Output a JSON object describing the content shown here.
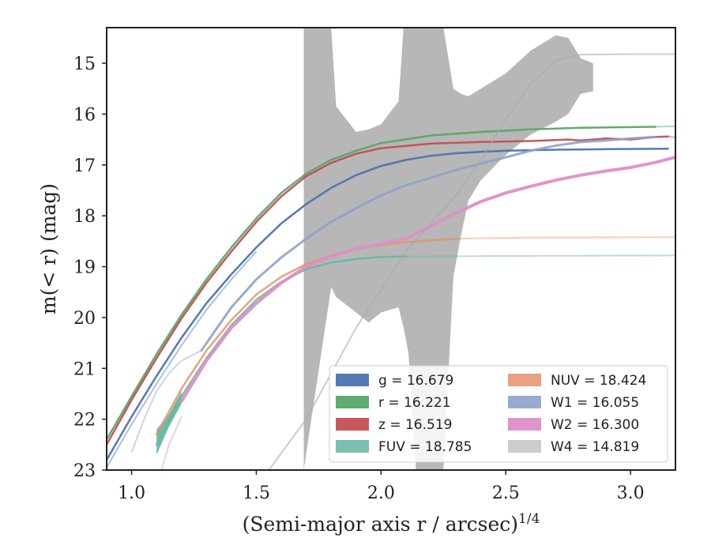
{
  "chart_data": {
    "type": "line",
    "xlabel": "(Semi-major axis r / arcsec)",
    "xlabel_superscript": "1/4",
    "ylabel": "m(< r) (mag)",
    "xlim": [
      0.9,
      3.18
    ],
    "ylim": [
      23.0,
      14.3
    ],
    "xticks": [
      "1.0",
      "1.5",
      "2.0",
      "2.5",
      "3.0"
    ],
    "xtick_values": [
      1.0,
      1.5,
      2.0,
      2.5,
      3.0
    ],
    "yticks": [
      "15",
      "16",
      "17",
      "18",
      "19",
      "20",
      "21",
      "22",
      "23"
    ],
    "ytick_values": [
      15,
      16,
      17,
      18,
      19,
      20,
      21,
      22,
      23
    ],
    "grid": false,
    "legend_position": "lower-right",
    "series": [
      {
        "name": "g = 16.679",
        "color": "#4c72b0",
        "width": 2.5,
        "opacity": 0.95,
        "points": [
          [
            0.9,
            22.8
          ],
          [
            1.0,
            21.95
          ],
          [
            1.1,
            21.15
          ],
          [
            1.2,
            20.4
          ],
          [
            1.3,
            19.72
          ],
          [
            1.4,
            19.15
          ],
          [
            1.5,
            18.62
          ],
          [
            1.6,
            18.15
          ],
          [
            1.7,
            17.77
          ],
          [
            1.8,
            17.45
          ],
          [
            1.9,
            17.2
          ],
          [
            2.0,
            17.02
          ],
          [
            2.1,
            16.9
          ],
          [
            2.2,
            16.82
          ],
          [
            2.3,
            16.77
          ],
          [
            2.4,
            16.74
          ],
          [
            2.5,
            16.72
          ],
          [
            2.7,
            16.7
          ],
          [
            2.9,
            16.69
          ],
          [
            3.15,
            16.68
          ]
        ],
        "faint_points": [
          [
            0.9,
            22.95
          ],
          [
            1.0,
            22.1
          ],
          [
            1.1,
            21.3
          ],
          [
            1.2,
            20.55
          ],
          [
            1.3,
            19.85
          ],
          [
            1.4,
            19.25
          ],
          [
            1.5,
            18.7
          ]
        ]
      },
      {
        "name": "r = 16.221",
        "color": "#55a868",
        "width": 2.5,
        "opacity": 0.95,
        "points": [
          [
            0.9,
            22.4
          ],
          [
            1.0,
            21.55
          ],
          [
            1.1,
            20.72
          ],
          [
            1.2,
            19.95
          ],
          [
            1.3,
            19.25
          ],
          [
            1.4,
            18.62
          ],
          [
            1.5,
            18.05
          ],
          [
            1.6,
            17.55
          ],
          [
            1.7,
            17.17
          ],
          [
            1.8,
            16.9
          ],
          [
            1.9,
            16.72
          ],
          [
            2.0,
            16.57
          ],
          [
            2.2,
            16.42
          ],
          [
            2.4,
            16.35
          ],
          [
            2.6,
            16.3
          ],
          [
            2.8,
            16.27
          ],
          [
            3.1,
            16.25
          ]
        ],
        "faint_points": [
          [
            3.1,
            16.25
          ],
          [
            3.18,
            16.24
          ]
        ]
      },
      {
        "name": "z = 16.519",
        "color": "#c44e52",
        "width": 2.5,
        "opacity": 0.95,
        "points": [
          [
            0.9,
            22.5
          ],
          [
            1.0,
            21.62
          ],
          [
            1.1,
            20.8
          ],
          [
            1.2,
            20.02
          ],
          [
            1.3,
            19.32
          ],
          [
            1.4,
            18.7
          ],
          [
            1.5,
            18.12
          ],
          [
            1.6,
            17.62
          ],
          [
            1.7,
            17.22
          ],
          [
            1.8,
            16.96
          ],
          [
            1.9,
            16.78
          ],
          [
            2.0,
            16.67
          ],
          [
            2.2,
            16.58
          ],
          [
            2.4,
            16.55
          ],
          [
            2.6,
            16.53
          ],
          [
            2.75,
            16.5
          ],
          [
            2.8,
            16.52
          ],
          [
            2.9,
            16.48
          ],
          [
            3.0,
            16.5
          ],
          [
            3.1,
            16.45
          ],
          [
            3.15,
            16.44
          ]
        ],
        "faint_points": [
          [
            3.15,
            16.44
          ],
          [
            3.18,
            16.46
          ]
        ]
      },
      {
        "name": "FUV = 18.785",
        "color": "#64b5a0",
        "width": 2.5,
        "opacity": 0.85,
        "points": [
          [
            1.1,
            22.5
          ],
          [
            1.2,
            21.55
          ],
          [
            1.3,
            20.8
          ],
          [
            1.4,
            20.15
          ],
          [
            1.5,
            19.65
          ],
          [
            1.6,
            19.3
          ],
          [
            1.7,
            19.05
          ],
          [
            1.8,
            18.92
          ],
          [
            1.9,
            18.85
          ],
          [
            2.0,
            18.81
          ],
          [
            2.1,
            18.8
          ]
        ],
        "faint_points": [
          [
            2.1,
            18.8
          ],
          [
            2.5,
            18.79
          ],
          [
            3.18,
            18.78
          ]
        ],
        "band": [
          [
            1.1,
            22.2,
            22.7
          ],
          [
            1.15,
            21.9,
            22.15
          ],
          [
            1.2,
            21.45,
            21.7
          ]
        ]
      },
      {
        "name": "NUV = 18.424",
        "color": "#e8916a",
        "width": 2.5,
        "opacity": 0.85,
        "points": [
          [
            1.1,
            22.3
          ],
          [
            1.2,
            21.4
          ],
          [
            1.3,
            20.65
          ],
          [
            1.4,
            20.05
          ],
          [
            1.5,
            19.55
          ],
          [
            1.6,
            19.2
          ],
          [
            1.7,
            18.95
          ],
          [
            1.8,
            18.78
          ],
          [
            1.9,
            18.65
          ],
          [
            2.0,
            18.57
          ],
          [
            2.1,
            18.52
          ],
          [
            2.2,
            18.48
          ],
          [
            2.3,
            18.45
          ]
        ],
        "faint_points": [
          [
            2.3,
            18.45
          ],
          [
            2.6,
            18.43
          ],
          [
            3.18,
            18.42
          ]
        ]
      },
      {
        "name": "W1 = 16.055",
        "color": "#8fa1c9",
        "width": 3,
        "opacity": 0.9,
        "points": [
          [
            1.28,
            20.65
          ],
          [
            1.35,
            20.15
          ],
          [
            1.4,
            19.8
          ],
          [
            1.5,
            19.25
          ],
          [
            1.6,
            18.82
          ],
          [
            1.7,
            18.45
          ],
          [
            1.8,
            18.12
          ],
          [
            1.9,
            17.85
          ],
          [
            2.0,
            17.6
          ],
          [
            2.1,
            17.4
          ],
          [
            2.2,
            17.25
          ],
          [
            2.3,
            17.1
          ],
          [
            2.4,
            16.97
          ],
          [
            2.5,
            16.85
          ],
          [
            2.6,
            16.72
          ],
          [
            2.7,
            16.62
          ],
          [
            2.8,
            16.55
          ],
          [
            2.9,
            16.52
          ],
          [
            3.0,
            16.48
          ],
          [
            3.1,
            16.45
          ]
        ],
        "faint_points": [
          [
            1.0,
            22.65
          ],
          [
            1.05,
            22.0
          ],
          [
            1.1,
            21.45
          ],
          [
            1.15,
            21.1
          ],
          [
            1.2,
            20.85
          ],
          [
            1.28,
            20.65
          ]
        ]
      },
      {
        "name": "W2 = 16.300",
        "color": "#dd8fc6",
        "width": 4,
        "opacity": 0.95,
        "points": [
          [
            1.2,
            21.65
          ],
          [
            1.3,
            20.85
          ],
          [
            1.4,
            20.2
          ],
          [
            1.5,
            19.72
          ],
          [
            1.6,
            19.32
          ],
          [
            1.7,
            19.0
          ],
          [
            1.8,
            18.8
          ],
          [
            1.9,
            18.65
          ],
          [
            2.0,
            18.55
          ],
          [
            2.1,
            18.45
          ],
          [
            2.2,
            18.2
          ],
          [
            2.3,
            17.95
          ],
          [
            2.4,
            17.72
          ],
          [
            2.5,
            17.55
          ],
          [
            2.6,
            17.42
          ],
          [
            2.7,
            17.3
          ],
          [
            2.8,
            17.2
          ],
          [
            2.9,
            17.12
          ],
          [
            3.0,
            17.05
          ],
          [
            3.1,
            16.95
          ],
          [
            3.18,
            16.85
          ]
        ],
        "faint_points": [
          [
            1.12,
            23.0
          ],
          [
            1.15,
            22.5
          ],
          [
            1.2,
            21.95
          ]
        ]
      },
      {
        "name": "W4 = 14.819",
        "color": "#aaaaaa",
        "width": 2,
        "opacity": 0.6,
        "points": [
          [
            1.55,
            23.0
          ],
          [
            1.7,
            22.0
          ],
          [
            1.9,
            20.2
          ],
          [
            2.1,
            18.7
          ],
          [
            2.3,
            17.6
          ],
          [
            2.4,
            16.9
          ],
          [
            2.5,
            16.1
          ],
          [
            2.6,
            15.4
          ],
          [
            2.7,
            14.95
          ],
          [
            2.8,
            14.83
          ],
          [
            3.0,
            14.82
          ],
          [
            3.18,
            14.82
          ]
        ],
        "band": [
          [
            1.69,
            14.3,
            23.0
          ],
          [
            1.8,
            14.3,
            19.4
          ],
          [
            1.82,
            15.85,
            19.6
          ],
          [
            1.9,
            16.35,
            19.9
          ],
          [
            1.95,
            16.3,
            20.1
          ],
          [
            2.0,
            16.2,
            19.9
          ],
          [
            2.07,
            15.75,
            19.8
          ],
          [
            2.09,
            14.3,
            20.2
          ],
          [
            2.11,
            14.3,
            20.7
          ],
          [
            2.14,
            14.3,
            23.0
          ],
          [
            2.25,
            14.3,
            23.0
          ],
          [
            2.29,
            15.5,
            19.2
          ],
          [
            2.32,
            15.6,
            18.4
          ],
          [
            2.35,
            15.65,
            17.7
          ],
          [
            2.4,
            15.5,
            17.3
          ],
          [
            2.5,
            15.2,
            16.8
          ],
          [
            2.6,
            14.75,
            16.4
          ],
          [
            2.7,
            14.45,
            16.15
          ],
          [
            2.75,
            14.5,
            16.0
          ],
          [
            2.8,
            14.9,
            15.6
          ],
          [
            2.85,
            15.0,
            15.55
          ]
        ]
      }
    ]
  }
}
